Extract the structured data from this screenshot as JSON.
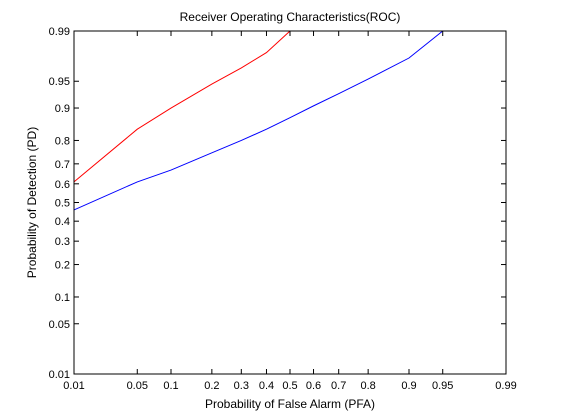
{
  "chart_data": {
    "type": "line",
    "title": "Receiver Operating Characteristics(ROC)",
    "xlabel": "Probability of False Alarm (PFA)",
    "ylabel": "Probability of Detection (PD)",
    "xscale": "normal-probability",
    "yscale": "normal-probability",
    "xlim": [
      0.01,
      0.99
    ],
    "ylim": [
      0.01,
      0.99
    ],
    "xticks": [
      0.01,
      0.05,
      0.1,
      0.2,
      0.3,
      0.4,
      0.5,
      0.6,
      0.7,
      0.8,
      0.9,
      0.95,
      0.99
    ],
    "xtick_labels": [
      "0.01",
      "0.05",
      "0.1",
      "0.2",
      "0.3",
      "0.4",
      "0.5",
      "0.6",
      "0.7",
      "0.8",
      "0.9",
      "0.95",
      "0.99"
    ],
    "yticks": [
      0.01,
      0.05,
      0.1,
      0.2,
      0.3,
      0.4,
      0.5,
      0.6,
      0.7,
      0.8,
      0.9,
      0.95,
      0.99
    ],
    "ytick_labels": [
      "0.01",
      "0.05",
      "0.1",
      "0.2",
      "0.3",
      "0.4",
      "0.5",
      "0.6",
      "0.7",
      "0.8",
      "0.9",
      "0.95",
      "0.99"
    ],
    "grid": false,
    "series": [
      {
        "color": "#ff0000",
        "x": [
          0.01,
          0.05,
          0.1,
          0.2,
          0.3,
          0.4,
          0.5
        ],
        "y": [
          0.61,
          0.84,
          0.9,
          0.946,
          0.966,
          0.979,
          0.99
        ]
      },
      {
        "color": "#0000ff",
        "x": [
          0.01,
          0.05,
          0.1,
          0.2,
          0.3,
          0.4,
          0.5,
          0.6,
          0.7,
          0.8,
          0.9,
          0.95
        ],
        "y": [
          0.46,
          0.61,
          0.67,
          0.75,
          0.8,
          0.84,
          0.875,
          0.905,
          0.93,
          0.953,
          0.975,
          0.99
        ]
      }
    ]
  }
}
